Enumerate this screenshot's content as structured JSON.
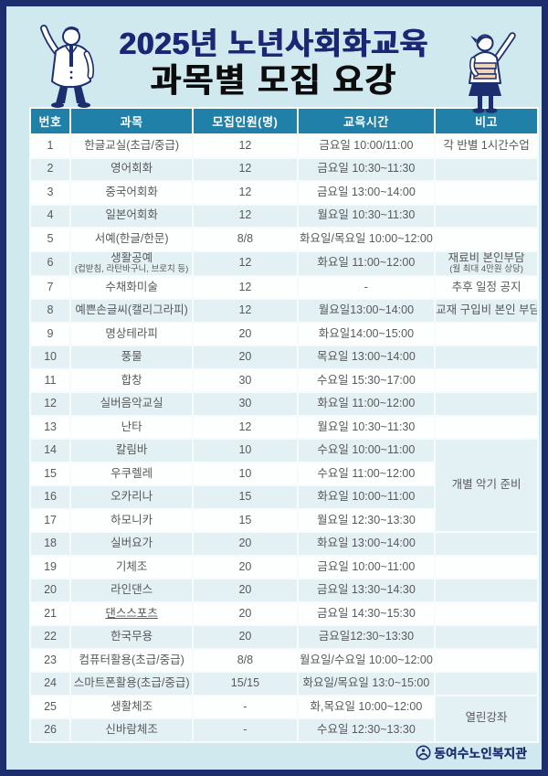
{
  "page": {
    "title_line1": "2025년 노년사회화교육",
    "title_line2": "과목별 모집 요강",
    "footer_logo_text": "동여수노인복지관"
  },
  "colors": {
    "frame_navy": "#1d2e6e",
    "background_cyan": "#cfe9ef",
    "table_header_teal": "#2080a8",
    "row_alt_blue": "#e3f1f5",
    "title_navy": "#1c2674",
    "title_black": "#0d0d0d",
    "body_text_gray": "#595959"
  },
  "icons": {
    "left_figure": "waving-man-illustration",
    "right_figure": "woman-holding-books-illustration",
    "logo": "welfare-center-logo-icon"
  },
  "table": {
    "headers": [
      "번호",
      "과목",
      "모집인원(명)",
      "교육시간",
      "비고"
    ],
    "rows": [
      {
        "no": "1",
        "subject": "한글교실(초급/중급)",
        "capacity": "12",
        "time": "금요일 10:00/11:00",
        "note": "각 반별 1시간수업"
      },
      {
        "no": "2",
        "subject": "영어회화",
        "capacity": "12",
        "time": "금요일 10:30~11:30",
        "note": ""
      },
      {
        "no": "3",
        "subject": "중국어회화",
        "capacity": "12",
        "time": "금요일 13:00~14:00",
        "note": ""
      },
      {
        "no": "4",
        "subject": "일본어회화",
        "capacity": "12",
        "time": "월요일 10:30~11:30",
        "note": ""
      },
      {
        "no": "5",
        "subject": "서예(한글/한문)",
        "capacity": "8/8",
        "time": "화요일/목요일 10:00~12:00",
        "note": ""
      },
      {
        "no": "6",
        "subject": "생활공예",
        "subject_sub": "(컵받침, 라탄바구니, 브로치 등)",
        "capacity": "12",
        "time": "화요일 11:00~12:00",
        "note": "재료비 본인부담",
        "note_sub": "(월 최대 4만원 상당)"
      },
      {
        "no": "7",
        "subject": "수채화미술",
        "capacity": "12",
        "time": "-",
        "note": "추후 일정 공지"
      },
      {
        "no": "8",
        "subject": "예쁜손글씨(캘리그라피)",
        "capacity": "12",
        "time": "월요일13:00~14:00",
        "note": "교재 구입비 본인 부담"
      },
      {
        "no": "9",
        "subject": "명상테라피",
        "capacity": "20",
        "time": "화요일14:00~15:00",
        "note": ""
      },
      {
        "no": "10",
        "subject": "풍물",
        "capacity": "20",
        "time": "목요일 13:00~14:00",
        "note": ""
      },
      {
        "no": "11",
        "subject": "합창",
        "capacity": "30",
        "time": "수요일 15:30~17:00",
        "note": ""
      },
      {
        "no": "12",
        "subject": "실버음악교실",
        "capacity": "30",
        "time": "화요일 11:00~12:00",
        "note": ""
      },
      {
        "no": "13",
        "subject": "난타",
        "capacity": "12",
        "time": "월요일 10:30~11:30",
        "note": ""
      },
      {
        "no": "14",
        "subject": "칼림바",
        "capacity": "10",
        "time": "수요일 10:00~11:00",
        "note": "개별 악기 준비",
        "note_rowspan": 4
      },
      {
        "no": "15",
        "subject": "우쿠렐레",
        "capacity": "10",
        "time": "수요일 11:00~12:00"
      },
      {
        "no": "16",
        "subject": "오카리나",
        "capacity": "15",
        "time": "화요일 10:00~11:00"
      },
      {
        "no": "17",
        "subject": "하모니카",
        "capacity": "15",
        "time": "월요일 12:30~13:30"
      },
      {
        "no": "18",
        "subject": "실버요가",
        "capacity": "20",
        "time": "화요일 13:00~14:00",
        "note": ""
      },
      {
        "no": "19",
        "subject": "기체조",
        "capacity": "20",
        "time": "금요일 10:00~11:00",
        "note": ""
      },
      {
        "no": "20",
        "subject": "라인댄스",
        "capacity": "20",
        "time": "금요일 13:30~14:30",
        "note": ""
      },
      {
        "no": "21",
        "subject": "댄스스포츠",
        "underline": true,
        "capacity": "20",
        "time": "금요일 14:30~15:30",
        "note": ""
      },
      {
        "no": "22",
        "subject": "한국무용",
        "capacity": "20",
        "time": "금요일12:30~13:30",
        "note": ""
      },
      {
        "no": "23",
        "subject": "컴퓨터활용(초급/중급)",
        "capacity": "8/8",
        "time": "월요일/수요일 10:00~12:00",
        "note": ""
      },
      {
        "no": "24",
        "subject": "스마트폰활용(초급/중급)",
        "capacity": "15/15",
        "time": "화요일/목요일 13:0~15:00",
        "note": ""
      },
      {
        "no": "25",
        "subject": "생활체조",
        "capacity": "-",
        "time": "화,목요일 10:00~12:00",
        "note": "열린강좌",
        "note_rowspan": 2
      },
      {
        "no": "26",
        "subject": "신바람체조",
        "capacity": "-",
        "time": "수요일 12:30~13:30"
      }
    ]
  }
}
